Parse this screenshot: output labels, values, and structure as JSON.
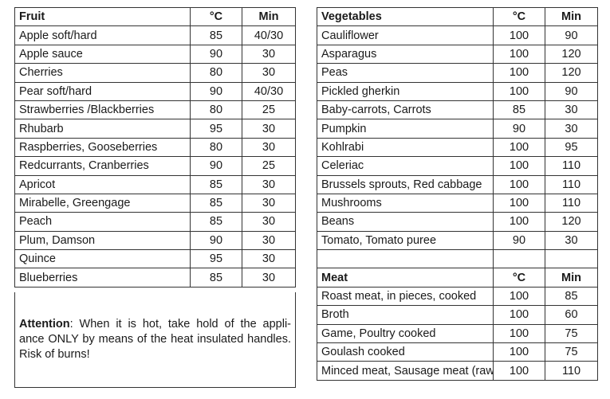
{
  "fruit": {
    "header": [
      "Fruit",
      "°C",
      "Min"
    ],
    "rows": [
      [
        "Apple soft/hard",
        "85",
        "40/30"
      ],
      [
        "Apple sauce",
        "90",
        "30"
      ],
      [
        "Cherries",
        "80",
        "30"
      ],
      [
        "Pear soft/hard",
        "90",
        "40/30"
      ],
      [
        "Strawberries /Blackberries",
        "80",
        "25"
      ],
      [
        "Rhubarb",
        "95",
        "30"
      ],
      [
        "Raspberries, Gooseberries",
        "80",
        "30"
      ],
      [
        "Redcurrants, Cranberries",
        "90",
        "25"
      ],
      [
        "Apricot",
        "85",
        "30"
      ],
      [
        "Mirabelle, Greengage",
        "85",
        "30"
      ],
      [
        "Peach",
        "85",
        "30"
      ],
      [
        "Plum, Damson",
        "90",
        "30"
      ],
      [
        "Quince",
        "95",
        "30"
      ],
      [
        "Blueberries",
        "85",
        "30"
      ]
    ]
  },
  "vegetables": {
    "header": [
      "Vegetables",
      "°C",
      "Min"
    ],
    "rows": [
      [
        "Cauliflower",
        "100",
        "90"
      ],
      [
        "Asparagus",
        "100",
        "120"
      ],
      [
        "Peas",
        "100",
        "120"
      ],
      [
        "Pickled gherkin",
        "100",
        "90"
      ],
      [
        "Baby-carrots, Carrots",
        "85",
        "30"
      ],
      [
        "Pumpkin",
        "90",
        "30"
      ],
      [
        "Kohlrabi",
        "100",
        "95"
      ],
      [
        "Celeriac",
        "100",
        "110"
      ],
      [
        "Brussels sprouts, Red cabbage",
        "100",
        "110"
      ],
      [
        "Mushrooms",
        "100",
        "110"
      ],
      [
        "Beans",
        "100",
        "120"
      ],
      [
        "Tomato, Tomato puree",
        "90",
        "30"
      ]
    ]
  },
  "meat": {
    "header": [
      "Meat",
      "°C",
      "Min"
    ],
    "rows": [
      [
        "Roast meat, in pieces, cooked",
        "100",
        "85"
      ],
      [
        "Broth",
        "100",
        "60"
      ],
      [
        "Game, Poultry cooked",
        "100",
        "75"
      ],
      [
        "Goulash cooked",
        "100",
        "75"
      ],
      [
        "Minced meat, Sausage meat (raw)",
        "100",
        "110"
      ]
    ]
  },
  "attention": {
    "label": "Attention",
    "text": ": When it is hot, take hold of the appli- ance ONLY by means of the heat insulated handles. Risk of burns!"
  }
}
